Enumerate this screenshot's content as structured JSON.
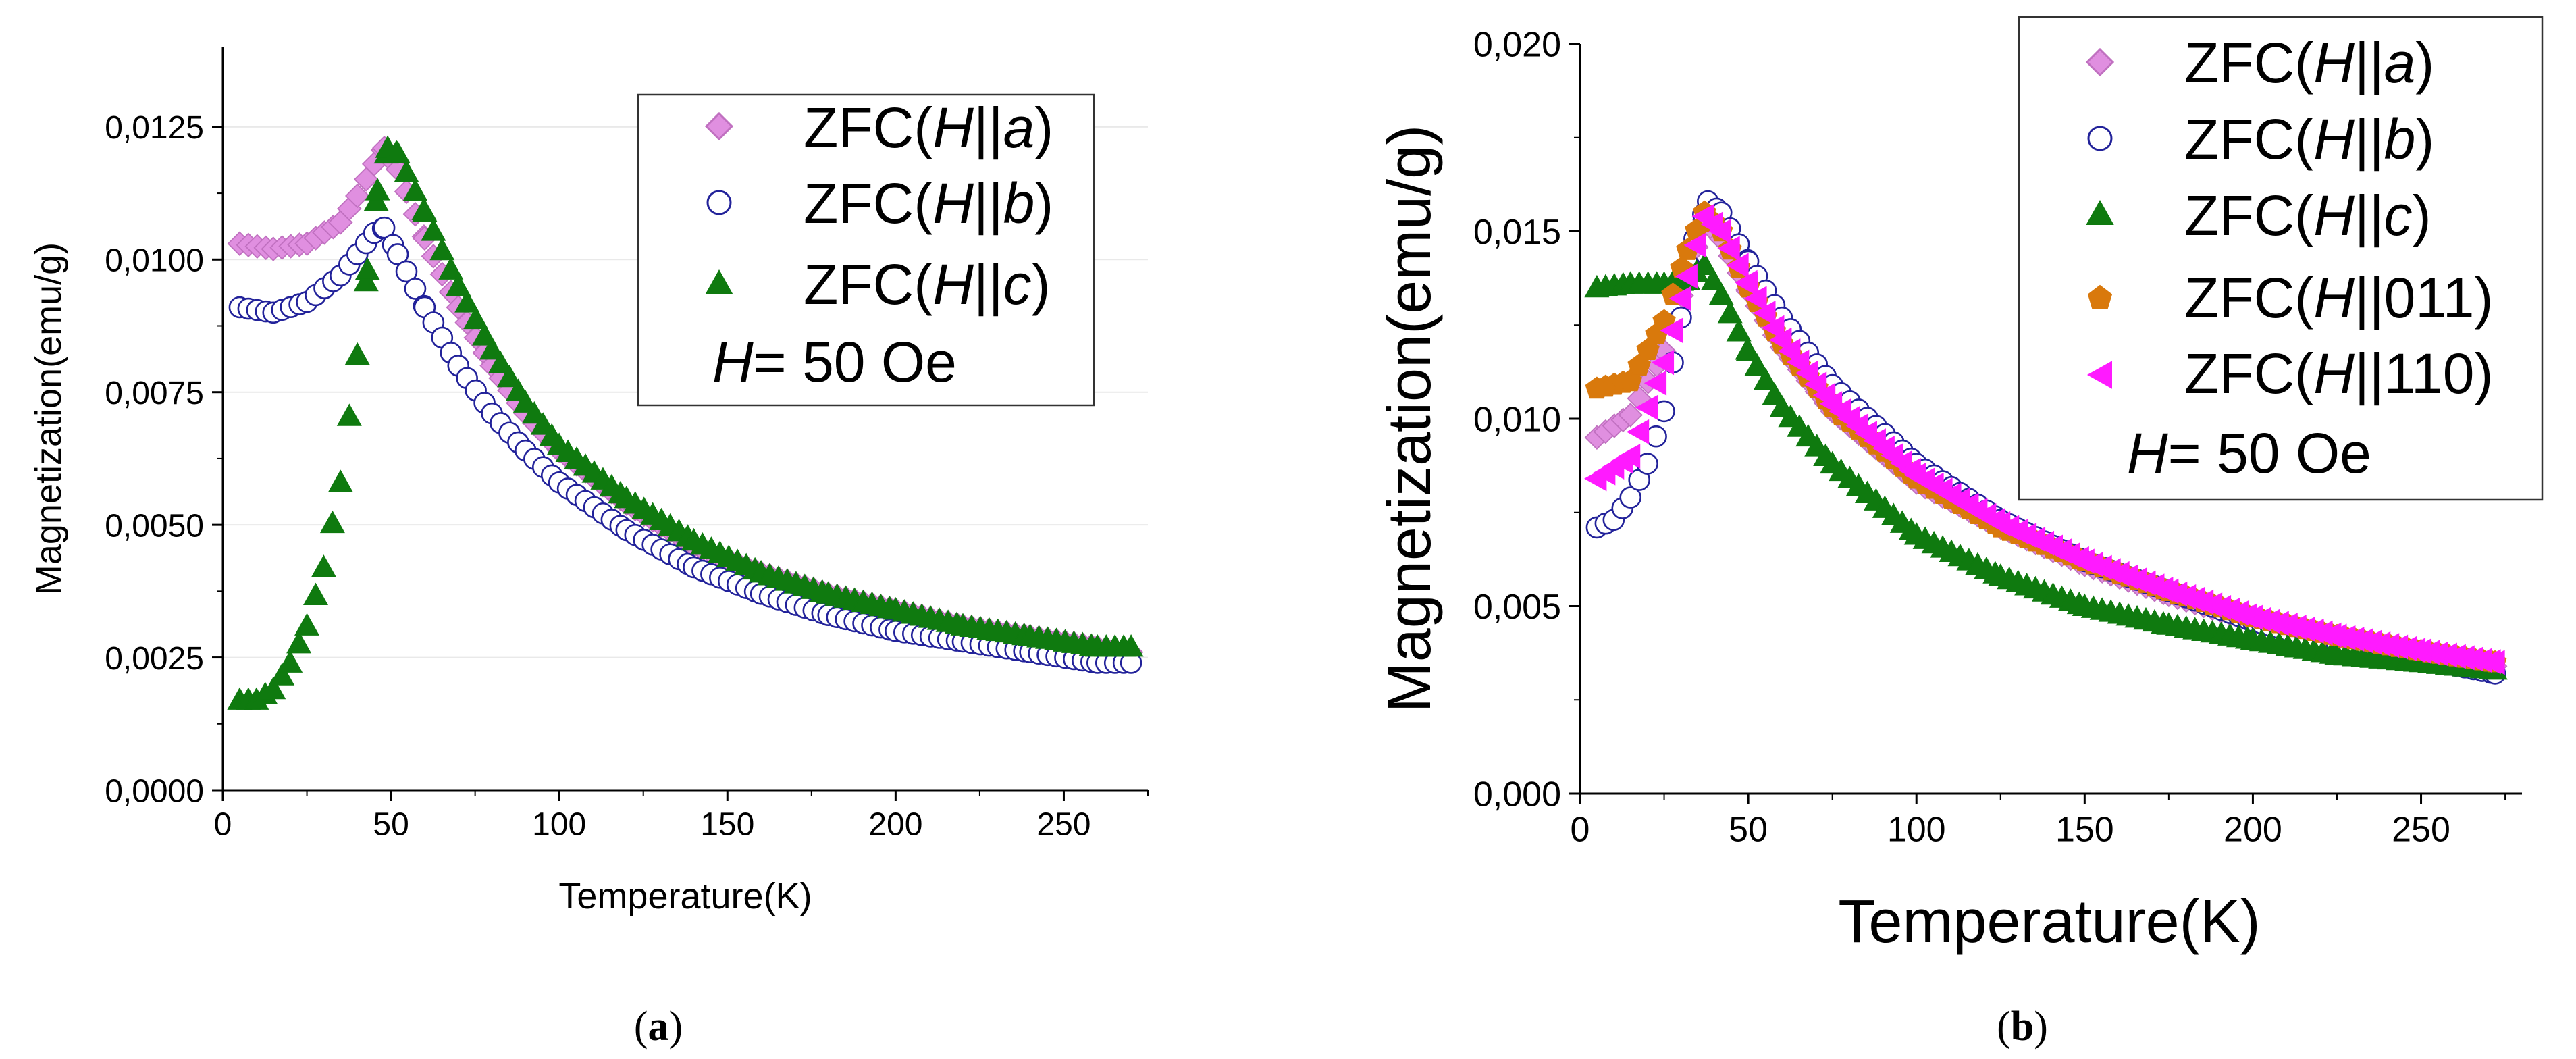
{
  "chart_data": [
    {
      "type": "scatter",
      "panel_label": "a",
      "title": "",
      "xlabel": "Temperature(K)",
      "ylabel": "Magnetization(emu/g)",
      "xlim": [
        0,
        275
      ],
      "ylim": [
        0,
        0.014
      ],
      "x_ticks": [
        0,
        50,
        100,
        150,
        200,
        250
      ],
      "x_tick_labels": [
        "0",
        "50",
        "100",
        "150",
        "200",
        "250"
      ],
      "y_ticks": [
        0,
        0.0025,
        0.005,
        0.0075,
        0.01,
        0.0125
      ],
      "y_tick_labels": [
        "0,0000",
        "0,0025",
        "0,0050",
        "0,0075",
        "0,0100",
        "0,0125"
      ],
      "legend_position": "top-right",
      "legend_note": "H= 50 Oe",
      "series": [
        {
          "name": "ZFC(H||a)",
          "legend_prefix": "ZFC(",
          "legend_var": "H",
          "legend_bars": "||",
          "legend_axis": "a",
          "legend_suffix": ")",
          "marker": "diamond",
          "color": "#e08fe0",
          "stroke": "#c070c0",
          "x": [
            5,
            15,
            25,
            35,
            40,
            45,
            48,
            52,
            60,
            70,
            80,
            90,
            100,
            120,
            140,
            160,
            180,
            200,
            220,
            240,
            260,
            270
          ],
          "y": [
            0.0103,
            0.0102,
            0.0103,
            0.0107,
            0.0112,
            0.0118,
            0.0121,
            0.0117,
            0.0104,
            0.0091,
            0.008,
            0.0071,
            0.0064,
            0.0054,
            0.0046,
            0.0041,
            0.0037,
            0.0034,
            0.0031,
            0.0029,
            0.0027,
            0.0026
          ]
        },
        {
          "name": "ZFC(H||b)",
          "legend_prefix": "ZFC(",
          "legend_var": "H",
          "legend_bars": "||",
          "legend_axis": "b",
          "legend_suffix": ")",
          "marker": "circle",
          "color": "#ffffff",
          "stroke": "#22229a",
          "x": [
            5,
            15,
            25,
            35,
            40,
            45,
            48,
            52,
            60,
            70,
            80,
            90,
            100,
            120,
            140,
            160,
            180,
            200,
            220,
            240,
            260,
            270
          ],
          "y": [
            0.0091,
            0.009,
            0.0092,
            0.0097,
            0.0101,
            0.0105,
            0.0106,
            0.0101,
            0.0091,
            0.008,
            0.0071,
            0.0064,
            0.0058,
            0.0049,
            0.0042,
            0.0037,
            0.0033,
            0.003,
            0.0028,
            0.0026,
            0.0024,
            0.0024
          ]
        },
        {
          "name": "ZFC(H||c)",
          "legend_prefix": "ZFC(",
          "legend_var": "H",
          "legend_bars": "||",
          "legend_axis": "c",
          "legend_suffix": ")",
          "marker": "triangle",
          "color": "#0f7a0f",
          "stroke": "#0f7a0f",
          "x": [
            5,
            10,
            15,
            20,
            25,
            30,
            35,
            40,
            43,
            46,
            49,
            52,
            60,
            70,
            80,
            90,
            100,
            120,
            140,
            160,
            180,
            200,
            220,
            240,
            260,
            270
          ],
          "y": [
            0.0017,
            0.0017,
            0.0019,
            0.0024,
            0.0031,
            0.0042,
            0.0058,
            0.0082,
            0.0098,
            0.0113,
            0.0121,
            0.012,
            0.0109,
            0.0095,
            0.0083,
            0.0073,
            0.0065,
            0.0055,
            0.0047,
            0.0041,
            0.0037,
            0.0034,
            0.0031,
            0.0029,
            0.0027,
            0.0027
          ]
        }
      ]
    },
    {
      "type": "scatter",
      "panel_label": "b",
      "title": "",
      "xlabel": "Temperature(K)",
      "ylabel": "Magnetization(emu/g)",
      "xlim": [
        0,
        280
      ],
      "ylim": [
        0,
        0.02
      ],
      "x_ticks": [
        0,
        50,
        100,
        150,
        200,
        250
      ],
      "x_tick_labels": [
        "0",
        "50",
        "100",
        "150",
        "200",
        "250"
      ],
      "y_ticks": [
        0,
        0.005,
        0.01,
        0.015,
        0.02
      ],
      "y_tick_labels": [
        "0,000",
        "0,005",
        "0,010",
        "0,015",
        "0,020"
      ],
      "legend_position": "top-right",
      "legend_note": "H= 50 Oe",
      "series": [
        {
          "name": "ZFC(H||a)",
          "legend_prefix": "ZFC(",
          "legend_var": "H",
          "legend_bars": "||",
          "legend_axis": "a",
          "legend_suffix": ")",
          "marker": "diamond",
          "color": "#e08fe0",
          "stroke": "#c070c0",
          "x": [
            5,
            15,
            25,
            32,
            37,
            42,
            50,
            60,
            75,
            100,
            125,
            150,
            175,
            200,
            225,
            250,
            272
          ],
          "y": [
            0.0095,
            0.0101,
            0.0118,
            0.0138,
            0.0153,
            0.0148,
            0.0134,
            0.0119,
            0.0102,
            0.0083,
            0.0071,
            0.0061,
            0.0053,
            0.0046,
            0.0041,
            0.0037,
            0.0034
          ]
        },
        {
          "name": "ZFC(H||b)",
          "legend_prefix": "ZFC(",
          "legend_var": "H",
          "legend_bars": "||",
          "legend_axis": "b",
          "legend_suffix": ")",
          "marker": "circle",
          "color": "#ffffff",
          "stroke": "#22229a",
          "x": [
            5,
            10,
            15,
            20,
            25,
            30,
            34,
            38,
            42,
            50,
            60,
            75,
            100,
            125,
            150,
            175,
            200,
            225,
            250,
            272
          ],
          "y": [
            0.0071,
            0.0073,
            0.0079,
            0.0088,
            0.0102,
            0.0127,
            0.0148,
            0.0158,
            0.0155,
            0.0142,
            0.0127,
            0.0109,
            0.0088,
            0.0073,
            0.0062,
            0.0054,
            0.0046,
            0.004,
            0.0036,
            0.0032
          ]
        },
        {
          "name": "ZFC(H||c)",
          "legend_prefix": "ZFC(",
          "legend_var": "H",
          "legend_bars": "||",
          "legend_axis": "c",
          "legend_suffix": ")",
          "marker": "triangle",
          "color": "#0f7a0f",
          "stroke": "#0f7a0f",
          "x": [
            5,
            15,
            25,
            32,
            37,
            42,
            50,
            60,
            75,
            100,
            125,
            150,
            175,
            200,
            225,
            250,
            272
          ],
          "y": [
            0.0135,
            0.0136,
            0.0136,
            0.0137,
            0.0141,
            0.0133,
            0.0118,
            0.0103,
            0.0088,
            0.0069,
            0.0058,
            0.005,
            0.0045,
            0.0041,
            0.0037,
            0.0035,
            0.0033
          ]
        },
        {
          "name": "ZFC(H||011)",
          "legend_prefix": "ZFC(",
          "legend_var": "H",
          "legend_bars": "||",
          "legend_axis": "011",
          "legend_suffix": ")",
          "marker": "pentagon",
          "color": "#d9790c",
          "stroke": "#d9790c",
          "x": [
            5,
            15,
            25,
            32,
            37,
            42,
            50,
            60,
            75,
            100,
            125,
            150,
            175,
            200,
            225,
            250,
            272
          ],
          "y": [
            0.0108,
            0.011,
            0.0126,
            0.0145,
            0.0155,
            0.015,
            0.0135,
            0.012,
            0.0103,
            0.0084,
            0.0071,
            0.0062,
            0.0054,
            0.0047,
            0.0042,
            0.0038,
            0.0035
          ]
        },
        {
          "name": "ZFC(H||110)",
          "legend_prefix": "ZFC(",
          "legend_var": "H",
          "legend_bars": "||",
          "legend_axis": "110",
          "legend_suffix": ")",
          "marker": "triangle-left",
          "color": "#ff1aff",
          "stroke": "#ff1aff",
          "x": [
            5,
            15,
            25,
            32,
            37,
            42,
            50,
            60,
            75,
            100,
            125,
            150,
            175,
            200,
            225,
            250,
            272
          ],
          "y": [
            0.0084,
            0.009,
            0.0115,
            0.0138,
            0.0154,
            0.015,
            0.0136,
            0.0121,
            0.0104,
            0.0085,
            0.0072,
            0.0062,
            0.0054,
            0.0047,
            0.0042,
            0.0038,
            0.0035
          ]
        }
      ]
    }
  ]
}
